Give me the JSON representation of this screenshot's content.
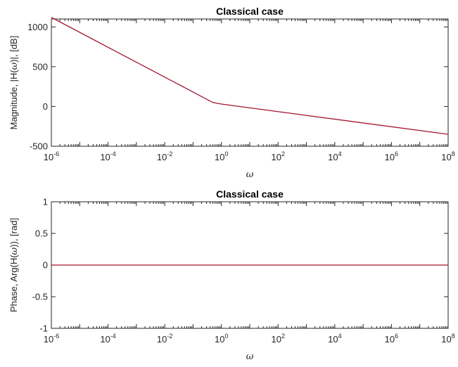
{
  "chart_data": [
    {
      "type": "line",
      "title": "Classical case",
      "xlabel": "ω",
      "ylabel": "Magnitude, |H(ω)|, [dB]",
      "xscale": "log",
      "xlim": [
        1e-06,
        100000000.0
      ],
      "ylim": [
        -500,
        1100
      ],
      "xticks": [
        "10^-6",
        "10^-4",
        "10^-2",
        "10^0",
        "10^2",
        "10^4",
        "10^6",
        "10^8"
      ],
      "yticks": [
        -500,
        0,
        500,
        1000
      ],
      "grid": false,
      "series": [
        {
          "color": "#a2142f",
          "x": [
            1e-06,
            0.5,
            1,
            100000000.0
          ],
          "y": [
            1120,
            50,
            30,
            -350
          ]
        }
      ]
    },
    {
      "type": "line",
      "title": "Classical case",
      "xlabel": "ω",
      "ylabel": "Phase, Arg(H(ω)), [rad]",
      "xscale": "log",
      "xlim": [
        1e-06,
        100000000.0
      ],
      "ylim": [
        -1,
        1
      ],
      "xticks": [
        "10^-6",
        "10^-4",
        "10^-2",
        "10^0",
        "10^2",
        "10^4",
        "10^6",
        "10^8"
      ],
      "yticks": [
        -1,
        -0.5,
        0,
        0.5,
        1
      ],
      "grid": false,
      "series": [
        {
          "color": "#a2142f",
          "x": [
            1e-06,
            100000000.0
          ],
          "y": [
            0,
            0
          ]
        }
      ]
    }
  ]
}
